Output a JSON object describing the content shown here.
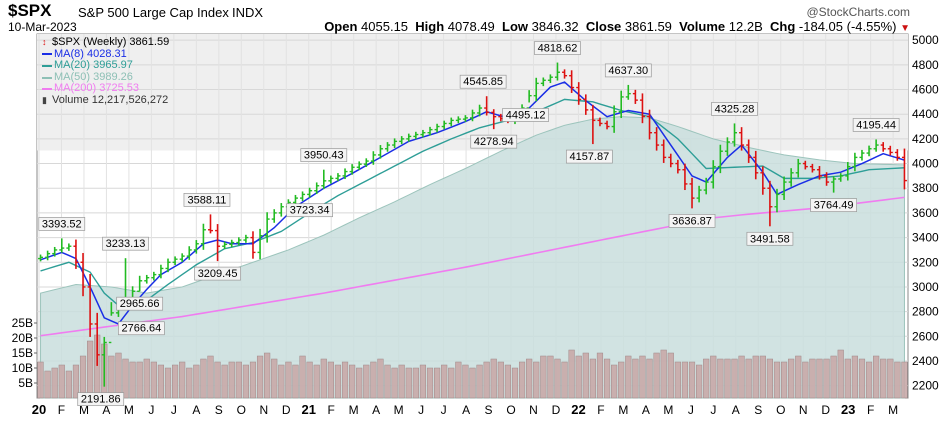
{
  "header": {
    "symbol": "$SPX",
    "name": "S&P 500 Large Cap Index",
    "exchange": "INDX",
    "date": "10-Mar-2023",
    "watermark": "@StockCharts.com",
    "open_label": "Open",
    "open": "4055.15",
    "high_label": "High",
    "high": "4078.49",
    "low_label": "Low",
    "low": "3846.32",
    "close_label": "Close",
    "close": "3861.59",
    "volume_label": "Volume",
    "volume": "12.2B",
    "chg_label": "Chg",
    "chg": "-184.05 (-4.55%)",
    "chg_marker": "▼"
  },
  "legend": [
    {
      "text": "$SPX (Weekly) 3861.59",
      "color": "#000000",
      "icon": "bar-chart-icon"
    },
    {
      "text": "MA(8) 4028.31",
      "color": "#1a2ee6",
      "icon": "line"
    },
    {
      "text": "MA(20) 3965.97",
      "color": "#2e9e97",
      "icon": "line"
    },
    {
      "text": "MA(50) 3989.26",
      "color": "#8ec0b6",
      "icon": "line"
    },
    {
      "text": "MA(200) 3725.53",
      "color": "#f07cf0",
      "icon": "line"
    },
    {
      "text": "Volume 12,217,526,272",
      "color": "#333333",
      "icon": "volume-icon"
    }
  ],
  "colors": {
    "up": "#22bb22",
    "down": "#dd1111",
    "neutral": "#2222cc",
    "ma8": "#1a2ee6",
    "ma20": "#2e9e97",
    "ma50_fill": "#c9dedd",
    "ma200": "#f07cf0",
    "volume_bar": "#c8a8a8",
    "background_band": "#efefef",
    "chg_marker": "#cc1111"
  },
  "chart_data": {
    "type": "ohlc",
    "title": "$SPX S&P 500 Large Cap Index INDX",
    "timeframe": "Weekly",
    "x_range": [
      "2020-01",
      "2023-03"
    ],
    "ylim": [
      2100,
      5050
    ],
    "y_ticks": [
      2200,
      2400,
      2600,
      2800,
      3000,
      3200,
      3400,
      3600,
      3800,
      4000,
      4200,
      4400,
      4600,
      4800,
      5000
    ],
    "volume_ticks": [
      "5B",
      "10B",
      "15B",
      "20B",
      "25B"
    ],
    "volume_tick_values": [
      5,
      10,
      15,
      20,
      25
    ],
    "x_tick_labels": [
      "20",
      "F",
      "M",
      "A",
      "M",
      "J",
      "J",
      "A",
      "S",
      "O",
      "N",
      "D",
      "21",
      "F",
      "M",
      "A",
      "M",
      "J",
      "J",
      "A",
      "S",
      "O",
      "N",
      "D",
      "22",
      "F",
      "M",
      "A",
      "M",
      "J",
      "J",
      "A",
      "S",
      "O",
      "N",
      "D",
      "23",
      "F",
      "M"
    ],
    "x_tick_bold": [
      "20",
      "21",
      "22",
      "23"
    ],
    "annotations": [
      {
        "t": 3.0,
        "value": 3393.52,
        "label": "3393.52",
        "pos": "above"
      },
      {
        "t": 8.5,
        "value": 2191.86,
        "label": "2191.86",
        "pos": "below"
      },
      {
        "t": 10.0,
        "value": 2766.64,
        "label": "2766.64",
        "pos": "right"
      },
      {
        "t": 14.0,
        "value": 2965.66,
        "label": "2965.66",
        "pos": "below"
      },
      {
        "t": 12.0,
        "value": 3233.13,
        "label": "3233.13",
        "pos": "above"
      },
      {
        "t": 23.5,
        "value": 3588.11,
        "label": "3588.11",
        "pos": "above"
      },
      {
        "t": 25.0,
        "value": 3209.45,
        "label": "3209.45",
        "pos": "below"
      },
      {
        "t": 40.0,
        "value": 3950.43,
        "label": "3950.43",
        "pos": "above"
      },
      {
        "t": 38.0,
        "value": 3723.34,
        "label": "3723.34",
        "pos": "below"
      },
      {
        "t": 62.5,
        "value": 4545.85,
        "label": "4545.85",
        "pos": "above"
      },
      {
        "t": 64.0,
        "value": 4278.94,
        "label": "4278.94",
        "pos": "below"
      },
      {
        "t": 68.5,
        "value": 4495.12,
        "label": "4495.12",
        "pos": "below"
      },
      {
        "t": 73.0,
        "value": 4818.62,
        "label": "4818.62",
        "pos": "above"
      },
      {
        "t": 83.0,
        "value": 4637.3,
        "label": "4637.30",
        "pos": "above"
      },
      {
        "t": 77.5,
        "value": 4157.87,
        "label": "4157.87",
        "pos": "below"
      },
      {
        "t": 92.0,
        "value": 3636.87,
        "label": "3636.87",
        "pos": "below"
      },
      {
        "t": 98.0,
        "value": 4325.28,
        "label": "4325.28",
        "pos": "above"
      },
      {
        "t": 103.0,
        "value": 3491.58,
        "label": "3491.58",
        "pos": "below"
      },
      {
        "t": 112.0,
        "value": 3764.49,
        "label": "3764.49",
        "pos": "below"
      },
      {
        "t": 118.0,
        "value": 4195.44,
        "label": "4195.44",
        "pos": "above"
      }
    ],
    "close_anchors": [
      [
        0,
        3240
      ],
      [
        2,
        3300
      ],
      [
        4,
        3330
      ],
      [
        5,
        3200
      ],
      [
        6,
        3000
      ],
      [
        7,
        2700
      ],
      [
        8,
        2450
      ],
      [
        9,
        2550
      ],
      [
        10,
        2790
      ],
      [
        11,
        2850
      ],
      [
        12,
        2880
      ],
      [
        14,
        3050
      ],
      [
        16,
        3100
      ],
      [
        18,
        3200
      ],
      [
        20,
        3250
      ],
      [
        22,
        3350
      ],
      [
        23.5,
        3520
      ],
      [
        25,
        3330
      ],
      [
        27,
        3360
      ],
      [
        29,
        3400
      ],
      [
        30,
        3280
      ],
      [
        32,
        3550
      ],
      [
        34,
        3650
      ],
      [
        36,
        3720
      ],
      [
        38,
        3780
      ],
      [
        40,
        3860
      ],
      [
        42,
        3900
      ],
      [
        44,
        3970
      ],
      [
        46,
        4020
      ],
      [
        48,
        4120
      ],
      [
        50,
        4180
      ],
      [
        52,
        4220
      ],
      [
        54,
        4250
      ],
      [
        56,
        4300
      ],
      [
        58,
        4350
      ],
      [
        60,
        4370
      ],
      [
        62,
        4450
      ],
      [
        64,
        4380
      ],
      [
        66,
        4350
      ],
      [
        68,
        4450
      ],
      [
        70,
        4650
      ],
      [
        72,
        4700
      ],
      [
        73.5,
        4760
      ],
      [
        76,
        4520
      ],
      [
        78,
        4350
      ],
      [
        80,
        4300
      ],
      [
        82,
        4540
      ],
      [
        83.5,
        4580
      ],
      [
        86,
        4250
      ],
      [
        88,
        4050
      ],
      [
        90,
        3950
      ],
      [
        92,
        3720
      ],
      [
        94,
        3850
      ],
      [
        96,
        4100
      ],
      [
        98,
        4250
      ],
      [
        100,
        4050
      ],
      [
        102,
        3800
      ],
      [
        103,
        3650
      ],
      [
        105,
        3850
      ],
      [
        107,
        4000
      ],
      [
        109,
        3950
      ],
      [
        111,
        3850
      ],
      [
        113,
        3900
      ],
      [
        115,
        4050
      ],
      [
        117,
        4120
      ],
      [
        118,
        4150
      ],
      [
        120,
        4090
      ],
      [
        121,
        4050
      ],
      [
        122,
        3862
      ]
    ],
    "ma8_anchors": [
      [
        0,
        3220
      ],
      [
        3,
        3280
      ],
      [
        5,
        3230
      ],
      [
        7,
        3000
      ],
      [
        9,
        2750
      ],
      [
        11,
        2700
      ],
      [
        13,
        2850
      ],
      [
        15,
        2980
      ],
      [
        17,
        3100
      ],
      [
        20,
        3200
      ],
      [
        23,
        3350
      ],
      [
        25,
        3380
      ],
      [
        27,
        3350
      ],
      [
        30,
        3350
      ],
      [
        33,
        3480
      ],
      [
        36,
        3650
      ],
      [
        40,
        3800
      ],
      [
        44,
        3920
      ],
      [
        48,
        4050
      ],
      [
        52,
        4180
      ],
      [
        56,
        4250
      ],
      [
        60,
        4340
      ],
      [
        63,
        4420
      ],
      [
        66,
        4370
      ],
      [
        69,
        4450
      ],
      [
        72,
        4620
      ],
      [
        74,
        4660
      ],
      [
        77,
        4510
      ],
      [
        80,
        4380
      ],
      [
        83,
        4430
      ],
      [
        86,
        4400
      ],
      [
        89,
        4150
      ],
      [
        92,
        3900
      ],
      [
        94,
        3850
      ],
      [
        97,
        4050
      ],
      [
        99,
        4150
      ],
      [
        102,
        3930
      ],
      [
        104,
        3750
      ],
      [
        107,
        3830
      ],
      [
        110,
        3900
      ],
      [
        113,
        3930
      ],
      [
        116,
        4000
      ],
      [
        119,
        4080
      ],
      [
        122,
        4028
      ]
    ],
    "ma20_anchors": [
      [
        0,
        3130
      ],
      [
        4,
        3200
      ],
      [
        7,
        3120
      ],
      [
        9,
        2950
      ],
      [
        11,
        2850
      ],
      [
        14,
        2850
      ],
      [
        18,
        3020
      ],
      [
        22,
        3180
      ],
      [
        26,
        3310
      ],
      [
        30,
        3360
      ],
      [
        34,
        3450
      ],
      [
        38,
        3600
      ],
      [
        42,
        3740
      ],
      [
        46,
        3860
      ],
      [
        50,
        3980
      ],
      [
        54,
        4100
      ],
      [
        58,
        4200
      ],
      [
        62,
        4290
      ],
      [
        66,
        4350
      ],
      [
        70,
        4420
      ],
      [
        74,
        4520
      ],
      [
        78,
        4500
      ],
      [
        82,
        4430
      ],
      [
        86,
        4380
      ],
      [
        90,
        4200
      ],
      [
        94,
        3960
      ],
      [
        98,
        3970
      ],
      [
        102,
        3980
      ],
      [
        105,
        3880
      ],
      [
        109,
        3880
      ],
      [
        113,
        3900
      ],
      [
        117,
        3950
      ],
      [
        122,
        3966
      ]
    ],
    "ma50_anchors": [
      [
        0,
        2950
      ],
      [
        5,
        3020
      ],
      [
        10,
        3000
      ],
      [
        15,
        2950
      ],
      [
        20,
        3000
      ],
      [
        25,
        3100
      ],
      [
        30,
        3200
      ],
      [
        35,
        3300
      ],
      [
        40,
        3420
      ],
      [
        45,
        3560
      ],
      [
        50,
        3690
      ],
      [
        55,
        3830
      ],
      [
        60,
        3960
      ],
      [
        65,
        4100
      ],
      [
        70,
        4230
      ],
      [
        74,
        4310
      ],
      [
        78,
        4360
      ],
      [
        82,
        4380
      ],
      [
        86,
        4370
      ],
      [
        90,
        4300
      ],
      [
        95,
        4200
      ],
      [
        100,
        4130
      ],
      [
        105,
        4070
      ],
      [
        110,
        4030
      ],
      [
        115,
        4000
      ],
      [
        122,
        3989
      ]
    ],
    "ma200_anchors": [
      [
        0,
        2605
      ],
      [
        20,
        2760
      ],
      [
        40,
        2950
      ],
      [
        60,
        3160
      ],
      [
        80,
        3390
      ],
      [
        95,
        3560
      ],
      [
        100,
        3590
      ],
      [
        110,
        3640
      ],
      [
        122,
        3726
      ]
    ],
    "volume_pattern_b": [
      12,
      9,
      10,
      11,
      9,
      11,
      14,
      19,
      21,
      18,
      14,
      15,
      13,
      12,
      12,
      13,
      12,
      11,
      10,
      11,
      12,
      10,
      11,
      13,
      14,
      12,
      11,
      12,
      12,
      11,
      12,
      14,
      15,
      13,
      11,
      12,
      11,
      14,
      12,
      11,
      13,
      12,
      11,
      12,
      11,
      10,
      11,
      12,
      13,
      11,
      10,
      11,
      10,
      10,
      11,
      10,
      10,
      11,
      10,
      12,
      11,
      10,
      11,
      12,
      13,
      12,
      11,
      10,
      12,
      13,
      12,
      14,
      14,
      13,
      12,
      16,
      14,
      15,
      13,
      15,
      13,
      11,
      12,
      14,
      13,
      14,
      13,
      15,
      16,
      15,
      12,
      12,
      12,
      11,
      13,
      14,
      13,
      13,
      13,
      14,
      13,
      14,
      14,
      13,
      12,
      12,
      13,
      14,
      12,
      13,
      13,
      13,
      14,
      16,
      13,
      14,
      13,
      12,
      14,
      13,
      13,
      12,
      12
    ]
  }
}
